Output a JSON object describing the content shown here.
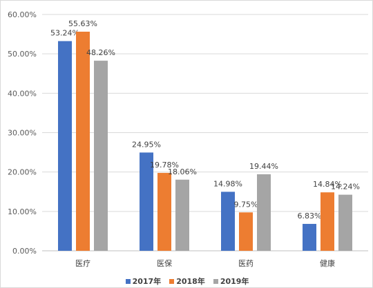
{
  "chart_data": {
    "type": "bar",
    "categories": [
      "医疗",
      "医保",
      "医药",
      "健康"
    ],
    "series": [
      {
        "name": "2017年",
        "color": "#4472C4",
        "values": [
          53.24,
          24.95,
          14.98,
          6.83
        ],
        "labels": [
          "53.24%",
          "24.95%",
          "14.98%",
          "6.83%"
        ]
      },
      {
        "name": "2018年",
        "color": "#ED7D31",
        "values": [
          55.63,
          19.78,
          9.75,
          14.84
        ],
        "labels": [
          "55.63%",
          "19.78%",
          "9.75%",
          "14.84%"
        ]
      },
      {
        "name": "2019年",
        "color": "#A5A5A5",
        "values": [
          48.26,
          18.06,
          19.44,
          14.24
        ],
        "labels": [
          "48.26%",
          "18.06%",
          "19.44%",
          "14.24%"
        ]
      }
    ],
    "ylim": [
      0,
      60
    ],
    "yticks": [
      0,
      10,
      20,
      30,
      40,
      50,
      60
    ],
    "ytick_labels": [
      "0.00%",
      "10.00%",
      "20.00%",
      "30.00%",
      "40.00%",
      "50.00%",
      "60.00%"
    ],
    "grid": true,
    "legend": "bottom"
  }
}
